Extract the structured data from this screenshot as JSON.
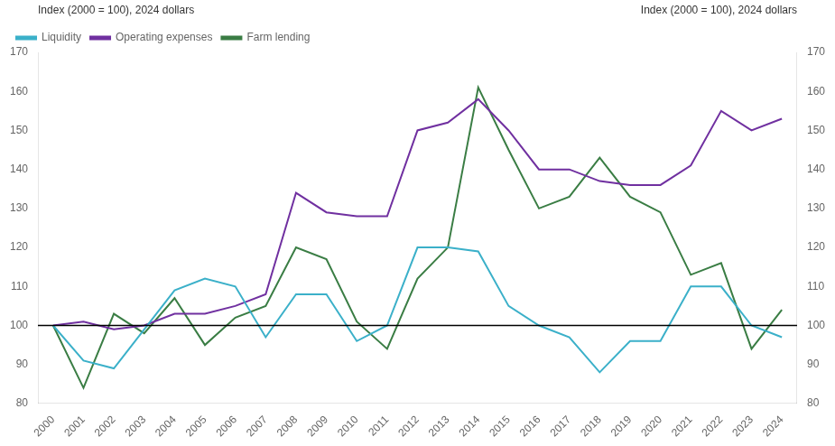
{
  "chart_data": {
    "type": "line",
    "x": [
      2000,
      2001,
      2002,
      2003,
      2004,
      2005,
      2006,
      2007,
      2008,
      2009,
      2010,
      2011,
      2012,
      2013,
      2014,
      2015,
      2016,
      2017,
      2018,
      2019,
      2020,
      2021,
      2022,
      2023,
      2024
    ],
    "xlim": [
      1999.5,
      2024.5
    ],
    "xticks": [
      2000,
      2001,
      2002,
      2003,
      2004,
      2005,
      2006,
      2007,
      2008,
      2009,
      2010,
      2011,
      2012,
      2013,
      2014,
      2015,
      2016,
      2017,
      2018,
      2019,
      2020,
      2021,
      2022,
      2023,
      2024
    ],
    "series": [
      {
        "name": "Liquidity",
        "color": "#3bb0c9",
        "values": [
          100,
          91,
          89,
          99,
          109,
          112,
          110,
          97,
          108,
          108,
          96,
          100,
          120,
          120,
          119,
          105,
          100,
          97,
          88,
          96,
          96,
          110,
          110,
          100,
          97
        ]
      },
      {
        "name": "Operating expenses",
        "color": "#7030a0",
        "values": [
          100,
          101,
          99,
          100,
          103,
          103,
          105,
          108,
          134,
          129,
          128,
          128,
          150,
          152,
          158,
          150,
          140,
          140,
          137,
          136,
          136,
          141,
          155,
          150,
          153
        ]
      },
      {
        "name": "Farm lending",
        "color": "#3a7d44",
        "values": [
          100,
          84,
          103,
          98,
          107,
          95,
          102,
          105,
          120,
          117,
          101,
          94,
          112,
          120,
          161,
          145,
          130,
          133,
          143,
          133,
          129,
          113,
          116,
          94,
          104
        ]
      }
    ],
    "ylim": [
      80,
      170
    ],
    "yticks": [
      80,
      90,
      100,
      110,
      120,
      130,
      140,
      150,
      160,
      170
    ],
    "y2lim": [
      80,
      170
    ],
    "y2ticks": [
      80,
      90,
      100,
      110,
      120,
      130,
      140,
      150,
      160,
      170
    ],
    "ylabel": "Index (2000 = 100), 2024 dollars",
    "y2label": "Index (2000 = 100), 2024 dollars",
    "reference_line": {
      "y": 100,
      "color": "#000000"
    },
    "legend": "upper left",
    "grid": false
  }
}
